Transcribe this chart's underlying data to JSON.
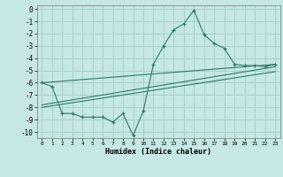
{
  "title": "",
  "xlabel": "Humidex (Indice chaleur)",
  "bg_color": "#c5e8e5",
  "grid_color": "#aacfcc",
  "line_color": "#2d7a6a",
  "xlim": [
    -0.5,
    23.5
  ],
  "ylim": [
    -10.5,
    0.3
  ],
  "yticks": [
    0,
    -1,
    -2,
    -3,
    -4,
    -5,
    -6,
    -7,
    -8,
    -9,
    -10
  ],
  "xticks": [
    0,
    1,
    2,
    3,
    4,
    5,
    6,
    7,
    8,
    9,
    10,
    11,
    12,
    13,
    14,
    15,
    16,
    17,
    18,
    19,
    20,
    21,
    22,
    23
  ],
  "line1_x": [
    0,
    1,
    2,
    3,
    4,
    5,
    6,
    7,
    8,
    9,
    10,
    11,
    12,
    13,
    14,
    15,
    16,
    17,
    18,
    19,
    20,
    21,
    22,
    23
  ],
  "line1_y": [
    -6.0,
    -6.3,
    -8.5,
    -8.5,
    -8.8,
    -8.8,
    -8.8,
    -9.2,
    -8.5,
    -10.3,
    -8.3,
    -4.5,
    -3.0,
    -1.7,
    -1.2,
    -0.1,
    -2.1,
    -2.8,
    -3.2,
    -4.5,
    -4.6,
    -4.6,
    -4.7,
    -4.5
  ],
  "line2_x": [
    0,
    23
  ],
  "line2_y": [
    -6.0,
    -4.5
  ],
  "line3_x": [
    0,
    23
  ],
  "line3_y": [
    -7.8,
    -4.7
  ],
  "line4_x": [
    0,
    23
  ],
  "line4_y": [
    -8.0,
    -5.1
  ]
}
